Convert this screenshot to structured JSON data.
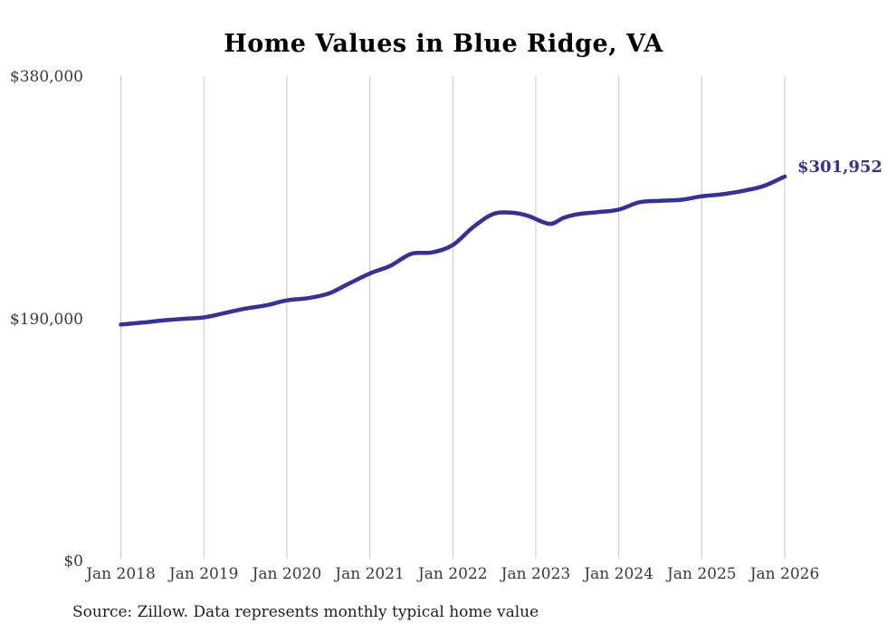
{
  "page": {
    "background": "#ffffff"
  },
  "chart_data": {
    "type": "line",
    "title": "Home Values in Blue Ridge, VA",
    "ylabel": "",
    "xlabel": "",
    "x_unit": "months since Jan 2018",
    "xlim_months": [
      0,
      96
    ],
    "ylim": [
      0,
      380000
    ],
    "grid": "vertical-only",
    "legend": "none",
    "series_name": "Monthly typical home value (USD)",
    "points": [
      [
        0,
        185800
      ],
      [
        3,
        187300
      ],
      [
        6,
        189000
      ],
      [
        9,
        190300
      ],
      [
        12,
        191400
      ],
      [
        15,
        194800
      ],
      [
        18,
        198300
      ],
      [
        21,
        200900
      ],
      [
        24,
        204800
      ],
      [
        27,
        206500
      ],
      [
        30,
        210000
      ],
      [
        33,
        218000
      ],
      [
        36,
        225800
      ],
      [
        39,
        232000
      ],
      [
        42,
        241300
      ],
      [
        45,
        242400
      ],
      [
        48,
        248200
      ],
      [
        51,
        262500
      ],
      [
        54,
        272800
      ],
      [
        57,
        273300
      ],
      [
        59,
        270800
      ],
      [
        62,
        264800
      ],
      [
        64,
        269500
      ],
      [
        66,
        272300
      ],
      [
        69,
        274000
      ],
      [
        72,
        276000
      ],
      [
        75,
        281800
      ],
      [
        78,
        282900
      ],
      [
        81,
        283700
      ],
      [
        84,
        286400
      ],
      [
        87,
        288000
      ],
      [
        90,
        290700
      ],
      [
        93,
        294600
      ],
      [
        96,
        301952
      ]
    ],
    "x_ticks": [
      "Jan 2018",
      "Jan 2019",
      "Jan 2020",
      "Jan 2021",
      "Jan 2022",
      "Jan 2023",
      "Jan 2024",
      "Jan 2025",
      "Jan 2026"
    ],
    "x_tick_months": [
      0,
      12,
      24,
      36,
      48,
      60,
      72,
      84,
      96
    ],
    "y_ticks": [
      {
        "value": 0,
        "label": "$0"
      },
      {
        "value": 190000,
        "label": "$190,000"
      },
      {
        "value": 380000,
        "label": "$380,000"
      }
    ],
    "end_label": "$301,952",
    "latest_value": 301952,
    "source": "Source: Zillow. Data represents monthly typical home value",
    "colors": {
      "line": "#37309c",
      "end_label": "#37309c",
      "gridline": "#c8c8c8",
      "title": "#000000",
      "tick_text": "#3a3a3a",
      "source_text": "#1f1f1f"
    }
  }
}
